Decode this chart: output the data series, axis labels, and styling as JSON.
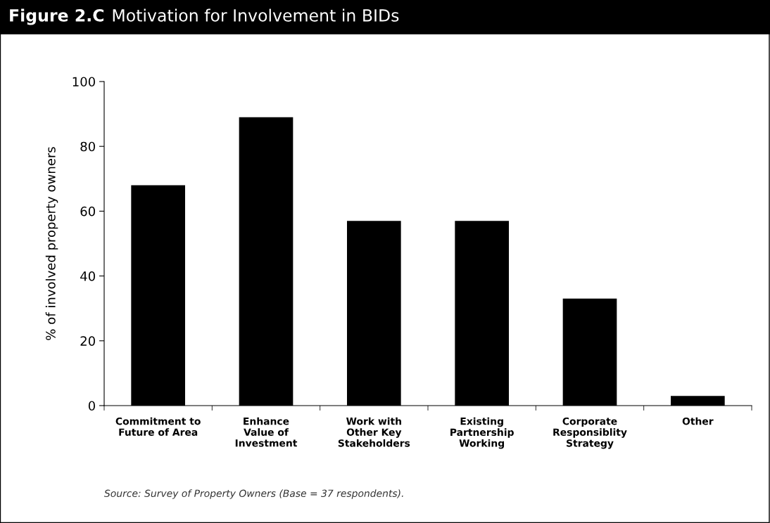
{
  "chart_data": {
    "type": "bar",
    "title": "Figure 2.C",
    "subtitle": "Motivation for Involvement in BIDs",
    "ylabel": "% of involved property owners",
    "categories": [
      "Commitment to\nFuture of Area",
      "Enhance\nValue of\nInvestment",
      "Work with\nOther Key\nStakeholders",
      "Existing\nPartnership\nWorking",
      "Corporate\nResponsiblity\nStrategy",
      "Other"
    ],
    "values": [
      68,
      89,
      57,
      57,
      33,
      3
    ],
    "color": "#000000",
    "ylim": [
      0,
      100
    ],
    "yticks": [
      0,
      20,
      40,
      60,
      80,
      100
    ],
    "grid": false,
    "legend": false,
    "annotations": [
      "Source: Survey of Property Owners (Base = 37 respondents)."
    ]
  }
}
